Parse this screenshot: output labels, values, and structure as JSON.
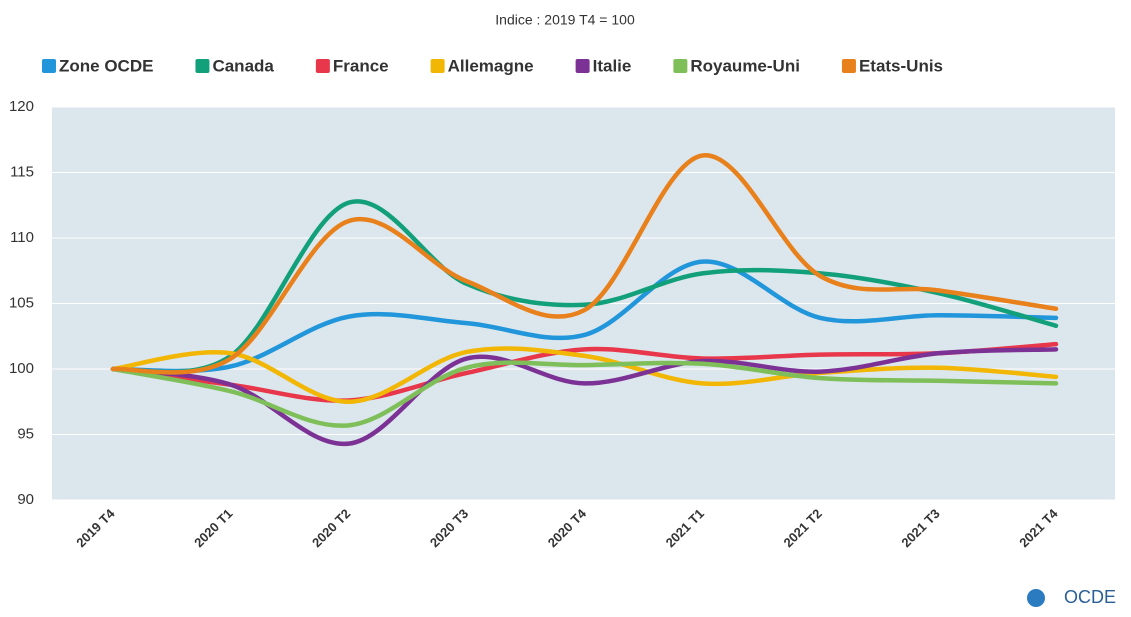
{
  "chart_data": {
    "type": "line",
    "subtitle": "Indice : 2019 T4 = 100",
    "categories": [
      "2019 T4",
      "2020 T1",
      "2020 T2",
      "2020 T3",
      "2020 T4",
      "2021 T1",
      "2021 T2",
      "2021 T3",
      "2021 T4"
    ],
    "series": [
      {
        "name": "Zone OCDE",
        "color": "#2196db",
        "values": [
          100,
          100.2,
          104,
          103.5,
          102.6,
          108.2,
          103.9,
          104.1,
          103.9
        ]
      },
      {
        "name": "Canada",
        "color": "#12a07a",
        "values": [
          100,
          101,
          112.7,
          106.5,
          104.9,
          107.3,
          107.3,
          105.8,
          103.3
        ]
      },
      {
        "name": "France",
        "color": "#e8374a",
        "values": [
          100,
          98.8,
          97.6,
          99.7,
          101.5,
          100.8,
          101.1,
          101.2,
          101.9
        ]
      },
      {
        "name": "Allemagne",
        "color": "#f2b705",
        "values": [
          100,
          101.2,
          97.5,
          101.3,
          101,
          98.9,
          99.7,
          100.1,
          99.4
        ]
      },
      {
        "name": "Italie",
        "color": "#7b3294",
        "values": [
          100,
          98.8,
          94.3,
          100.8,
          98.9,
          100.6,
          99.8,
          101.2,
          101.5
        ]
      },
      {
        "name": "Royaume-Uni",
        "color": "#7fbf5a",
        "values": [
          100,
          98.3,
          95.7,
          100.1,
          100.3,
          100.4,
          99.3,
          99.1,
          98.9
        ]
      },
      {
        "name": "Etats-Unis",
        "color": "#e8801b",
        "values": [
          100,
          100.8,
          111.3,
          106.7,
          104.5,
          116.3,
          107.1,
          106,
          104.6
        ]
      }
    ],
    "ylim": [
      90,
      120
    ],
    "yticks": [
      90,
      95,
      100,
      105,
      110,
      115,
      120
    ],
    "grid": true,
    "legend": "top",
    "branding": "OCDE"
  }
}
